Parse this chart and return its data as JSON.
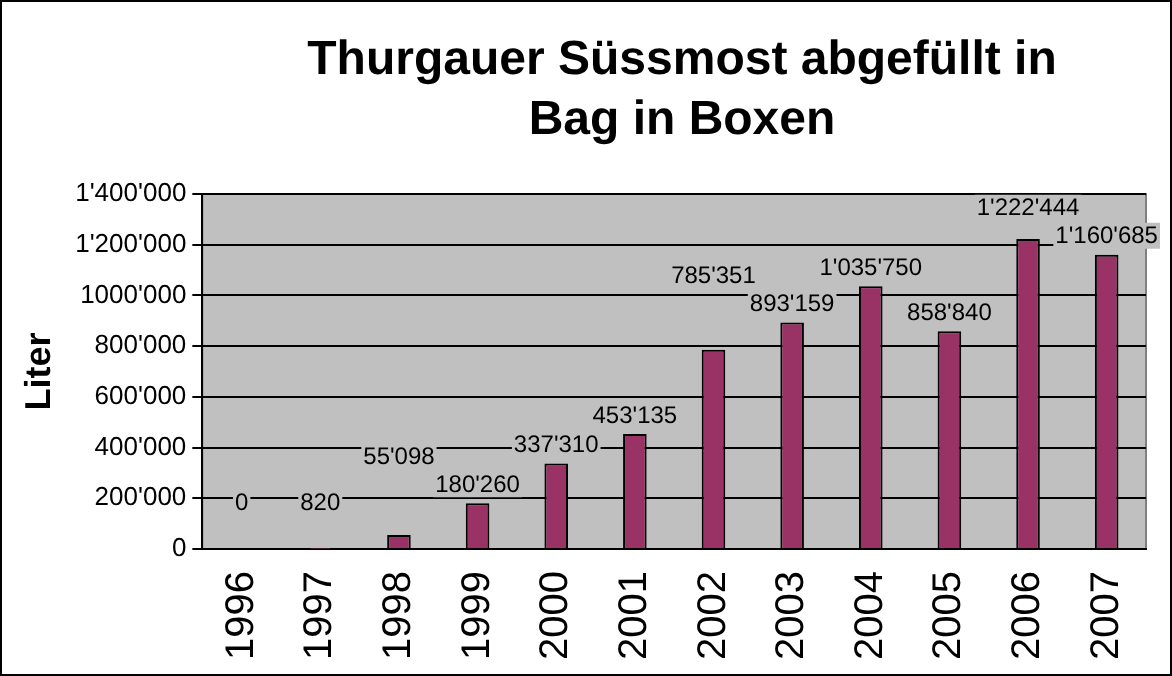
{
  "chart_data": {
    "type": "bar",
    "title": "Thurgauer Süssmost abgefüllt in Bag in Boxen",
    "ylabel": "Liter",
    "categories": [
      "1996",
      "1997",
      "1998",
      "1999",
      "2000",
      "2001",
      "2002",
      "2003",
      "2004",
      "2005",
      "2006",
      "2007"
    ],
    "values": [
      0,
      820,
      55098,
      180260,
      337310,
      453135,
      785351,
      893159,
      1035750,
      858840,
      1222444,
      1160685
    ],
    "value_labels": [
      "0",
      "820",
      "55'098",
      "180'260",
      "337'310",
      "453'135",
      "785'351",
      "893'159",
      "1'035'750",
      "858'840",
      "1'222'444",
      "1'160'685"
    ],
    "color": "#993366",
    "ylim": [
      0,
      1400000
    ],
    "yticks": [
      {
        "value": 0,
        "label": "0"
      },
      {
        "value": 200000,
        "label": "200'000"
      },
      {
        "value": 400000,
        "label": "400'000"
      },
      {
        "value": 600000,
        "label": "600'000"
      },
      {
        "value": 800000,
        "label": "800'000"
      },
      {
        "value": 1000000,
        "label": "1000'000"
      },
      {
        "value": 1200000,
        "label": "1'200'000"
      },
      {
        "value": 1400000,
        "label": "1'400'000"
      }
    ],
    "grid": "y",
    "legend": false
  }
}
